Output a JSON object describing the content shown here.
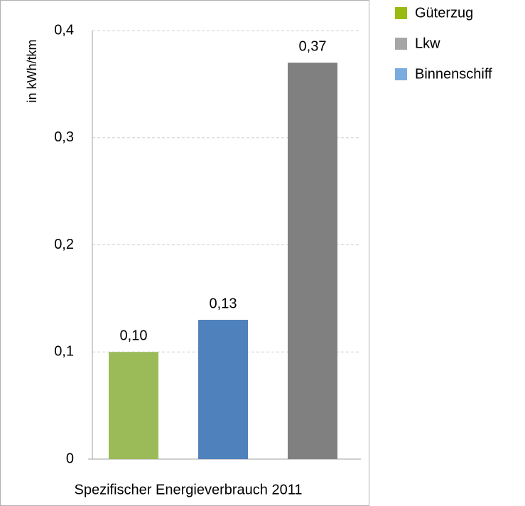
{
  "chart_data": {
    "type": "bar",
    "x_label": "Spezifischer Energieverbrauch 2011",
    "y_label": "in kWh/tkm",
    "series": [
      {
        "name": "Güterzug",
        "color": "#9bbb59",
        "legend_color": "#99bb11",
        "values": [
          0.1
        ],
        "value_labels": [
          "0,10"
        ]
      },
      {
        "name": "Binnenschiff",
        "color": "#4f81bd",
        "legend_color": "#7aacdf",
        "values": [
          0.13
        ],
        "value_labels": [
          "0,13"
        ]
      },
      {
        "name": "Lkw",
        "color": "#808080",
        "legend_color": "#a6a6a6",
        "values": [
          0.37
        ],
        "value_labels": [
          "0,37"
        ]
      }
    ],
    "legend_order": [
      0,
      2,
      1
    ],
    "ylim": [
      0,
      0.4
    ],
    "yticks": [
      0,
      {
        "value": 0.1,
        "label": "0,1"
      },
      {
        "value": 0.2,
        "label": "0,2"
      },
      {
        "value": 0.3,
        "label": "0,3"
      },
      {
        "value": 0.4,
        "label": "0,4"
      }
    ],
    "grid": true
  }
}
